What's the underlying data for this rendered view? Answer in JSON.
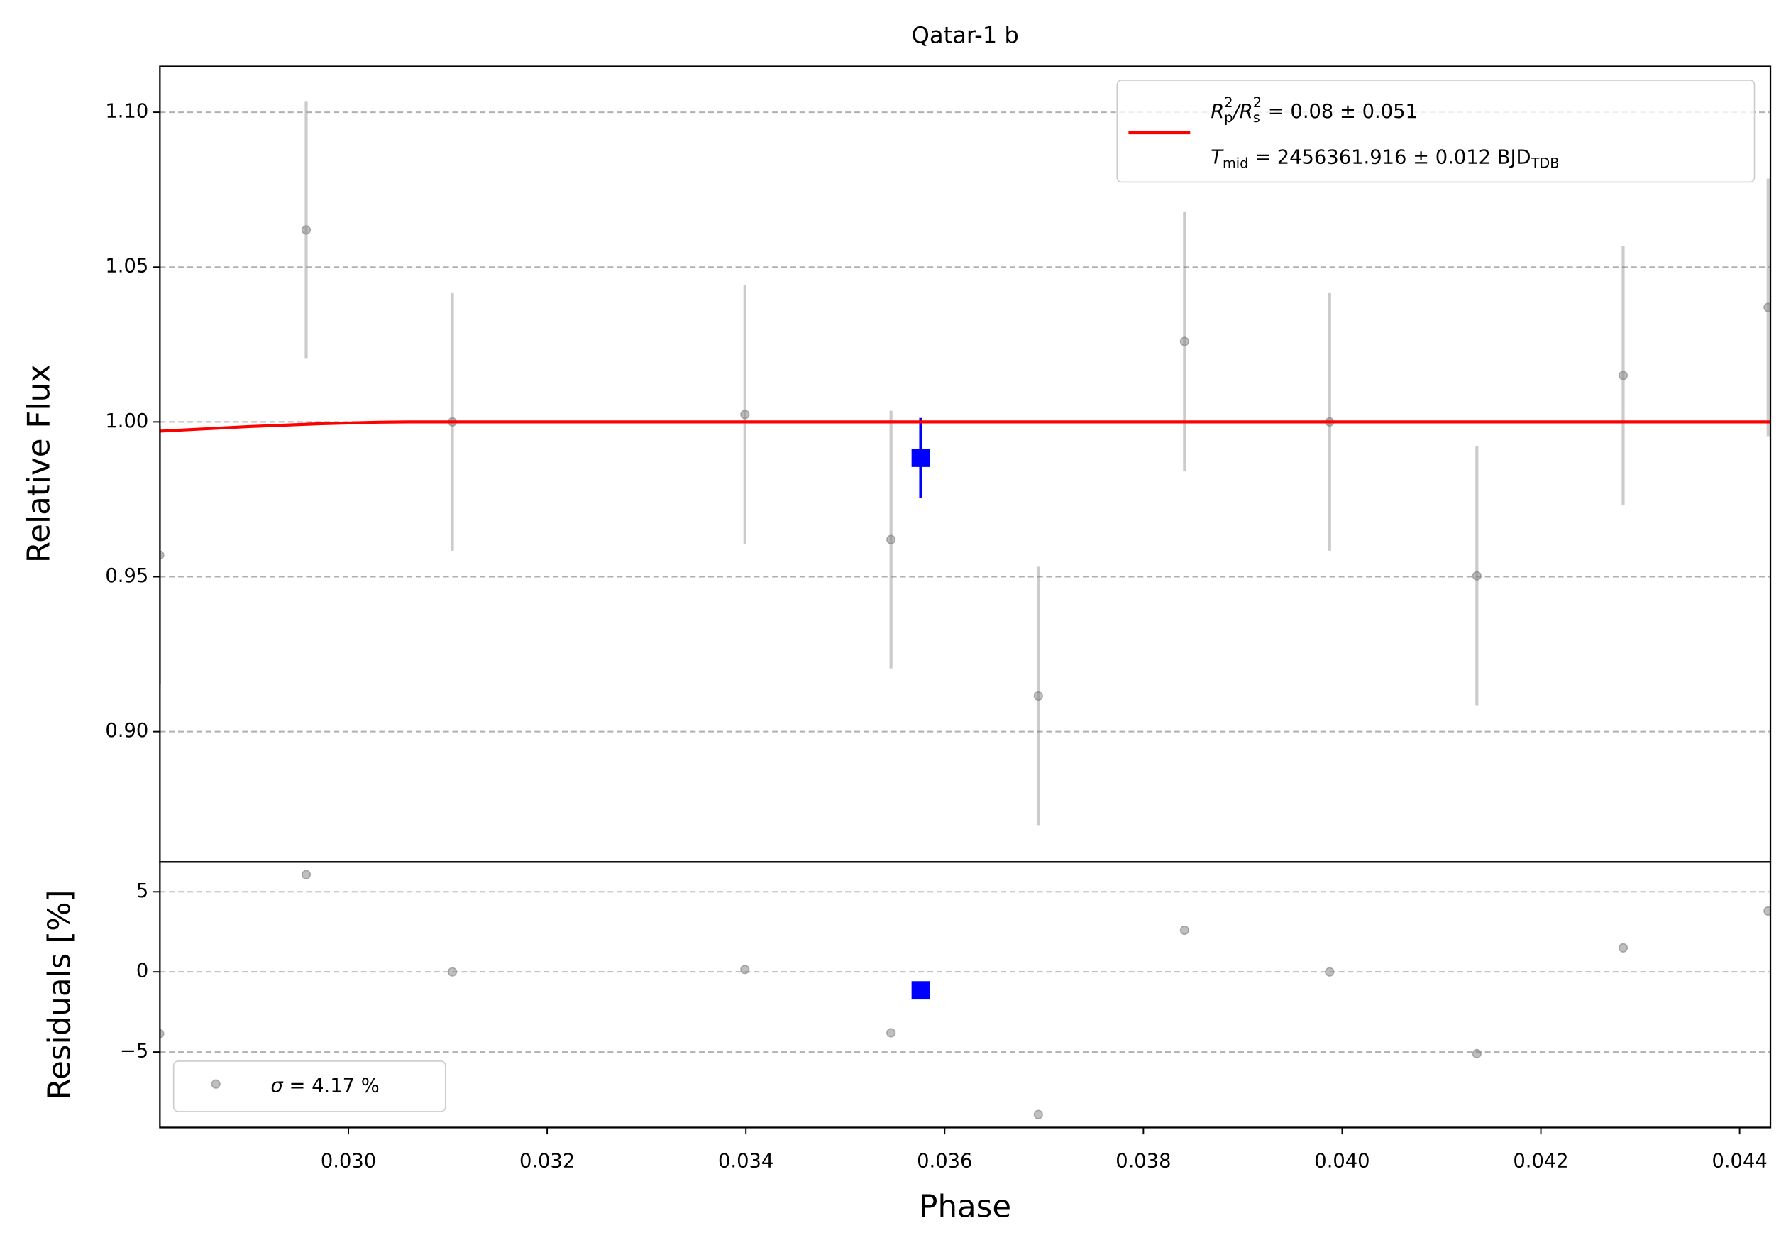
{
  "chart_data": [
    {
      "type": "scatter",
      "title": "Qatar-1 b",
      "ylabel": "Relative Flux",
      "xlim": [
        0.028103,
        0.04431
      ],
      "ylim": [
        0.8579,
        1.1148
      ],
      "yticks": [
        {
          "value": 0.9,
          "label": "0.90"
        },
        {
          "value": 0.95,
          "label": "0.95"
        },
        {
          "value": 1.0,
          "label": "1.00"
        },
        {
          "value": 1.05,
          "label": "1.05"
        },
        {
          "value": 1.1,
          "label": "1.10"
        }
      ],
      "grid": true,
      "legend": "upper right",
      "series": [
        {
          "marker": "circle",
          "color": "#808080",
          "x": [
            0.0281,
            0.029575,
            0.031046,
            0.03399,
            0.03546,
            0.036943,
            0.038414,
            0.039874,
            0.041356,
            0.042828,
            0.044287
          ],
          "values": [
            0.957,
            1.062,
            1.0,
            1.0024,
            0.962,
            0.9115,
            1.026,
            1.0,
            0.9503,
            1.015,
            1.037
          ],
          "errors": [
            0.0416,
            0.0416,
            0.0416,
            0.0418,
            0.0416,
            0.0417,
            0.042,
            0.0416,
            0.0418,
            0.0418,
            0.0416
          ]
        },
        {
          "marker": "square",
          "color": "#0000ff",
          "x": [
            0.035759
          ],
          "values": [
            0.9884
          ],
          "errors": [
            0.0129
          ]
        },
        {
          "marker": "line",
          "color": "#ff0000",
          "name_parts": [
            "R",
            "p",
            "2",
            "/R",
            "s",
            "2",
            " = 0.08 ± 0.051"
          ],
          "name2_parts": [
            "T",
            "mid",
            " = 2456361.916 ± 0.012 BJD",
            "TDB"
          ],
          "x": [
            0.0281,
            0.029,
            0.0297,
            0.0303,
            0.0306,
            0.04431
          ],
          "values": [
            0.997,
            0.9985,
            0.9994,
            0.9999,
            1.0,
            1.0
          ]
        }
      ]
    },
    {
      "type": "scatter",
      "xlabel": "Phase",
      "ylabel": "Residuals [%]",
      "xlim": [
        0.028103,
        0.04431
      ],
      "ylim": [
        -9.71,
        6.86
      ],
      "xticks": [
        {
          "value": 0.03,
          "label": "0.030"
        },
        {
          "value": 0.032,
          "label": "0.032"
        },
        {
          "value": 0.034,
          "label": "0.034"
        },
        {
          "value": 0.036,
          "label": "0.036"
        },
        {
          "value": 0.038,
          "label": "0.038"
        },
        {
          "value": 0.04,
          "label": "0.040"
        },
        {
          "value": 0.042,
          "label": "0.042"
        },
        {
          "value": 0.044,
          "label": "0.044"
        }
      ],
      "yticks": [
        {
          "value": -5,
          "label": "−5"
        },
        0,
        5
      ],
      "grid": true,
      "legend": "lower left",
      "series": [
        {
          "marker": "circle",
          "color": "#808080",
          "name_parts": [
            "σ",
            " = 4.17 %"
          ],
          "x": [
            0.0281,
            0.029575,
            0.031046,
            0.03399,
            0.03546,
            0.036943,
            0.038414,
            0.039874,
            0.041356,
            0.042828,
            0.044287
          ],
          "values": [
            -3.86,
            6.07,
            0.0,
            0.15,
            -3.8,
            -8.9,
            2.6,
            0.0,
            -5.1,
            1.5,
            3.8
          ]
        },
        {
          "marker": "square",
          "color": "#0000ff",
          "x": [
            0.035759
          ],
          "values": [
            -1.15
          ]
        }
      ]
    }
  ]
}
